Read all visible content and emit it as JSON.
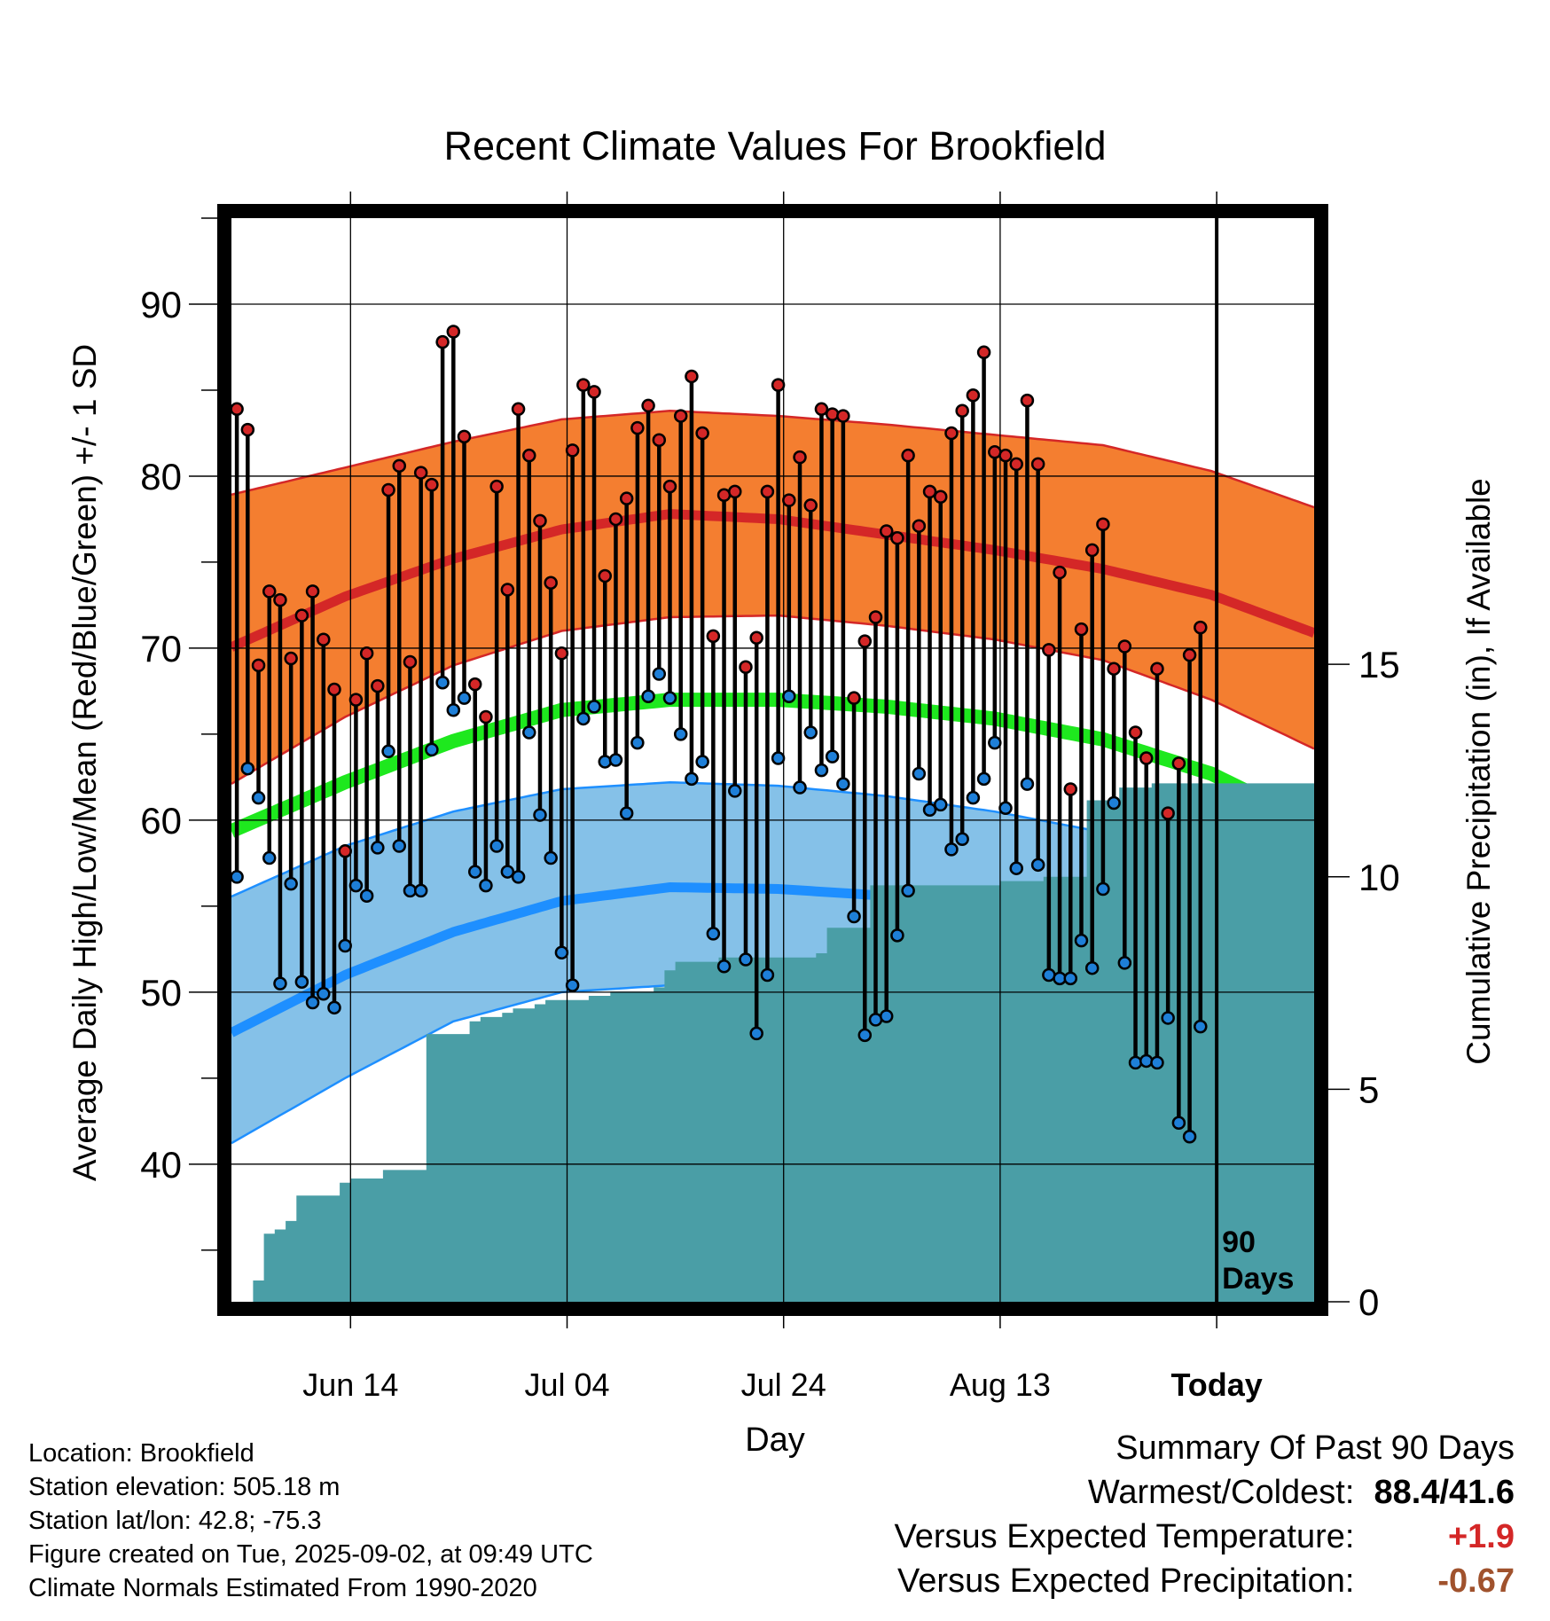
{
  "chart_data": {
    "type": "line",
    "title": "Recent Climate Values For Brookfield",
    "xlabel": "Day",
    "ylabel": "Average Daily High/Low/Mean (Red/Blue/Green) +/- 1 SD",
    "y2label": "Cumulative Precipitation (in), If Available",
    "ylim": [
      32,
      95
    ],
    "y2lim": [
      0,
      25.5
    ],
    "xlim": [
      -0.5,
      99.5
    ],
    "x_ticks": [
      {
        "x": 10.5,
        "label": "Jun 14"
      },
      {
        "x": 30.5,
        "label": "Jul 04"
      },
      {
        "x": 50.5,
        "label": "Jul 24"
      },
      {
        "x": 70.5,
        "label": "Aug 13"
      },
      {
        "x": 90.5,
        "label": "Today"
      }
    ],
    "y_ticks": [
      40,
      50,
      60,
      70,
      80,
      90
    ],
    "y2_ticks": [
      0,
      5,
      10,
      15
    ],
    "today_marker": {
      "x": 90.5,
      "label_line1": "90",
      "label_line2": "Days"
    },
    "normals": {
      "x": [
        0,
        10,
        20,
        30,
        40,
        50,
        60,
        70,
        80,
        90,
        99
      ],
      "high_mean": [
        70.2,
        73.0,
        75.2,
        76.9,
        77.8,
        77.5,
        76.6,
        75.7,
        74.6,
        73.1,
        71.0
      ],
      "high_upper": [
        79.0,
        80.5,
        82.0,
        83.3,
        83.8,
        83.5,
        83.0,
        82.4,
        81.8,
        80.3,
        78.3
      ],
      "high_lower": [
        62.3,
        66.0,
        69.0,
        71.0,
        71.8,
        71.9,
        71.3,
        70.5,
        69.3,
        67.0,
        64.3
      ],
      "mean": [
        59.5,
        62.2,
        64.6,
        66.4,
        67.0,
        67.0,
        66.6,
        65.9,
        64.7,
        62.7,
        59.9
      ],
      "low_mean": [
        47.8,
        51.0,
        53.5,
        55.3,
        56.1,
        56.0,
        55.6,
        54.7,
        53.3,
        51.3,
        48.5
      ],
      "low_upper": [
        55.7,
        58.5,
        60.5,
        61.8,
        62.2,
        62.0,
        61.4,
        60.5,
        59.3,
        58.0,
        56.4
      ],
      "low_lower": [
        41.4,
        45.0,
        48.3,
        50.0,
        50.4,
        50.5,
        50.1,
        49.0,
        47.3,
        45.5,
        41.9
      ]
    },
    "series": [
      {
        "name": "High",
        "color": "#d42727",
        "values": [
          83.9,
          82.7,
          69.0,
          73.3,
          72.8,
          69.4,
          71.9,
          73.3,
          70.5,
          67.6,
          58.2,
          67.0,
          69.7,
          67.8,
          79.2,
          80.6,
          69.2,
          80.2,
          79.5,
          87.8,
          88.4,
          82.3,
          67.9,
          66.0,
          79.4,
          73.4,
          83.9,
          81.2,
          77.4,
          73.8,
          69.7,
          81.5,
          85.3,
          84.9,
          74.2,
          77.5,
          78.7,
          82.8,
          84.1,
          82.1,
          79.4,
          83.5,
          85.8,
          82.5,
          70.7,
          78.9,
          79.1,
          68.9,
          70.6,
          79.1,
          85.3,
          78.6,
          81.1,
          78.3,
          83.9,
          83.6,
          83.5,
          67.1,
          70.4,
          71.8,
          76.8,
          76.4,
          81.2,
          77.1,
          79.1,
          78.8,
          82.5,
          83.8,
          84.7,
          87.2,
          81.4,
          81.2,
          80.7,
          84.4,
          80.7,
          69.9,
          74.4,
          61.8,
          71.1,
          75.7,
          77.2,
          68.8,
          70.1,
          65.1,
          63.6,
          68.8,
          60.4,
          63.3,
          69.6,
          71.2
        ]
      },
      {
        "name": "Low",
        "color": "#1e7fd8",
        "values": [
          56.7,
          63.0,
          61.3,
          57.8,
          50.5,
          56.3,
          50.6,
          49.4,
          49.9,
          49.1,
          52.7,
          56.2,
          55.6,
          58.4,
          64.0,
          58.5,
          55.9,
          55.9,
          64.1,
          68.0,
          66.4,
          67.1,
          57.0,
          56.2,
          58.5,
          57.0,
          56.7,
          65.1,
          60.3,
          57.8,
          52.3,
          50.4,
          65.9,
          66.6,
          63.4,
          63.5,
          60.4,
          64.5,
          67.2,
          68.5,
          67.1,
          65.0,
          62.4,
          63.4,
          53.4,
          51.5,
          61.7,
          51.9,
          47.6,
          51.0,
          63.6,
          67.2,
          61.9,
          65.1,
          62.9,
          63.7,
          62.1,
          54.4,
          47.5,
          48.4,
          48.6,
          53.3,
          55.9,
          62.7,
          60.6,
          60.9,
          58.3,
          58.9,
          61.3,
          62.4,
          64.5,
          60.7,
          57.2,
          62.1,
          57.4,
          51.0,
          50.8,
          50.8,
          53.0,
          51.4,
          56.0,
          61.0,
          51.7,
          45.9,
          46.0,
          45.9,
          48.5,
          42.4,
          41.6,
          48.0
        ]
      }
    ],
    "precip": {
      "x": [
        0,
        1,
        2,
        3,
        4,
        5,
        6,
        7,
        8,
        9,
        10,
        11,
        12,
        13,
        14,
        15,
        16,
        17,
        18,
        19,
        20,
        21,
        22,
        23,
        24,
        25,
        26,
        27,
        28,
        29,
        30,
        31,
        32,
        33,
        34,
        35,
        36,
        37,
        38,
        39,
        40,
        41,
        42,
        43,
        44,
        45,
        46,
        47,
        48,
        49,
        50,
        51,
        52,
        53,
        54,
        55,
        56,
        57,
        58,
        59,
        60,
        61,
        62,
        63,
        64,
        65,
        66,
        67,
        68,
        69,
        70,
        71,
        72,
        73,
        74,
        75,
        76,
        77,
        78,
        79,
        80,
        81,
        82,
        83,
        84,
        85,
        86,
        87,
        88,
        89,
        90,
        91,
        92,
        93,
        94,
        95,
        96,
        97,
        98,
        99
      ],
      "values": [
        0.0,
        0.0,
        0.5,
        1.6,
        1.7,
        1.9,
        2.5,
        2.5,
        2.5,
        2.5,
        2.8,
        2.9,
        2.9,
        2.9,
        3.1,
        3.1,
        3.1,
        3.1,
        6.3,
        6.3,
        6.3,
        6.3,
        6.6,
        6.7,
        6.7,
        6.8,
        6.9,
        6.9,
        7.0,
        7.1,
        7.1,
        7.1,
        7.1,
        7.2,
        7.2,
        7.3,
        7.3,
        7.3,
        7.3,
        7.4,
        7.8,
        8.0,
        8.0,
        8.0,
        8.0,
        8.1,
        8.1,
        8.1,
        8.1,
        8.1,
        8.1,
        8.1,
        8.1,
        8.1,
        8.2,
        8.8,
        8.8,
        8.8,
        8.8,
        9.8,
        9.8,
        9.8,
        9.8,
        9.8,
        9.8,
        9.8,
        9.8,
        9.8,
        9.8,
        9.8,
        9.8,
        9.9,
        9.9,
        9.9,
        9.9,
        10.0,
        10.0,
        10.0,
        10.0,
        11.8,
        11.8,
        11.8,
        12.1,
        12.1,
        12.1,
        12.2,
        12.2,
        12.2,
        12.2,
        12.2,
        12.2,
        12.2,
        12.2,
        12.2,
        12.2,
        12.2,
        12.2,
        12.2,
        12.2,
        12.2
      ]
    },
    "colors": {
      "high_band": "#f47e30",
      "high_line": "#d42727",
      "mean_band": "#1ee81e",
      "low_band": "#85c1e8",
      "low_line": "#1e8fff",
      "low_edge": "#1e8fff",
      "precip_fill": "#4a9ea6"
    }
  },
  "footer": {
    "location": "Location: Brookfield",
    "elevation": "Station elevation: 505.18 m",
    "latlon": "Station lat/lon: 42.8; -75.3",
    "created": "Figure created on Tue, 2025-09-02, at 09:49 UTC",
    "normals": "Climate Normals Estimated From 1990-2020"
  },
  "summary": {
    "title": "Summary Of Past 90 Days",
    "warm_cold_label": "Warmest/Coldest:",
    "warm_cold_value": "88.4/41.6",
    "temp_label": "Versus Expected Temperature:",
    "temp_value": "+1.9",
    "temp_color": "#d42727",
    "precip_label": "Versus Expected Precipitation:",
    "precip_value": "-0.67",
    "precip_color": "#a0522d"
  }
}
